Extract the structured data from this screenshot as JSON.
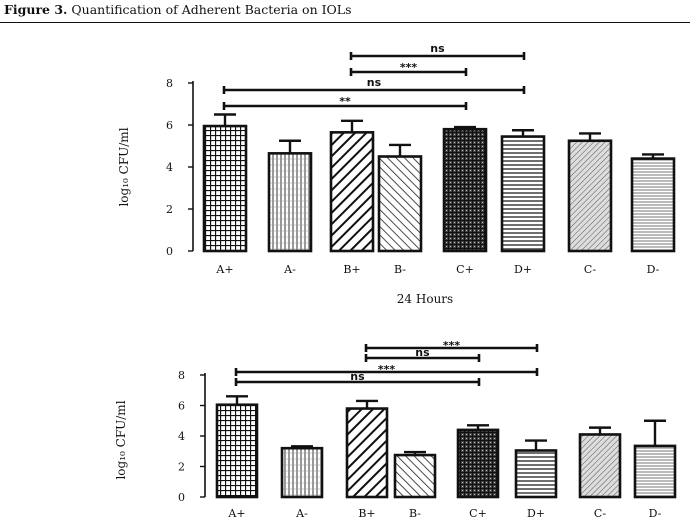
{
  "figure": {
    "label": "Figure 3.",
    "title": "Quantification of Adherent Bacteria on IOLs"
  },
  "chart_data": [
    {
      "type": "bar",
      "categories": [
        "A+",
        "A-",
        "B+",
        "B-",
        "C+",
        "D+",
        "C-",
        "D-"
      ],
      "values": [
        5.95,
        4.65,
        5.65,
        4.5,
        5.8,
        5.45,
        5.25,
        4.4
      ],
      "errors": [
        0.55,
        0.6,
        0.55,
        0.55,
        0.1,
        0.3,
        0.35,
        0.2
      ],
      "patterns": [
        "grid",
        "vlines",
        "diag-thick",
        "diag-thin",
        "dark-grid",
        "hlines",
        "diag-fine",
        "hlines-light"
      ],
      "ylabel": "log₁₀ CFU/ml",
      "xlabel": "24 Hours",
      "ylim": [
        0,
        8
      ],
      "yticks": [
        0,
        2,
        4,
        6,
        8
      ],
      "grid": false,
      "comparisons": [
        {
          "from": "B+",
          "to": "D+",
          "label": "ns"
        },
        {
          "from": "B+",
          "to": "C+",
          "label": "***"
        },
        {
          "from": "A+",
          "to": "D+",
          "label": "ns"
        },
        {
          "from": "A+",
          "to": "C+",
          "label": "**"
        }
      ]
    },
    {
      "type": "bar",
      "categories": [
        "A+",
        "A-",
        "B+",
        "B-",
        "C+",
        "D+",
        "C-",
        "D-"
      ],
      "values": [
        6.05,
        3.2,
        5.8,
        2.75,
        4.4,
        3.05,
        4.1,
        3.35
      ],
      "errors": [
        0.55,
        0.12,
        0.5,
        0.2,
        0.3,
        0.65,
        0.45,
        1.65
      ],
      "patterns": [
        "grid",
        "vlines",
        "diag-thick",
        "diag-thin",
        "dark-grid",
        "hlines",
        "diag-fine",
        "hlines-light"
      ],
      "ylabel": "log₁₀ CFU/ml",
      "xlabel": "",
      "ylim": [
        0,
        8
      ],
      "yticks": [
        0,
        2,
        4,
        6,
        8
      ],
      "grid": false,
      "comparisons": [
        {
          "from": "B+",
          "to": "D+",
          "label": "***"
        },
        {
          "from": "B+",
          "to": "C+",
          "label": "ns"
        },
        {
          "from": "A+",
          "to": "D+",
          "label": "***"
        },
        {
          "from": "A+",
          "to": "C+",
          "label": "ns"
        }
      ]
    }
  ]
}
